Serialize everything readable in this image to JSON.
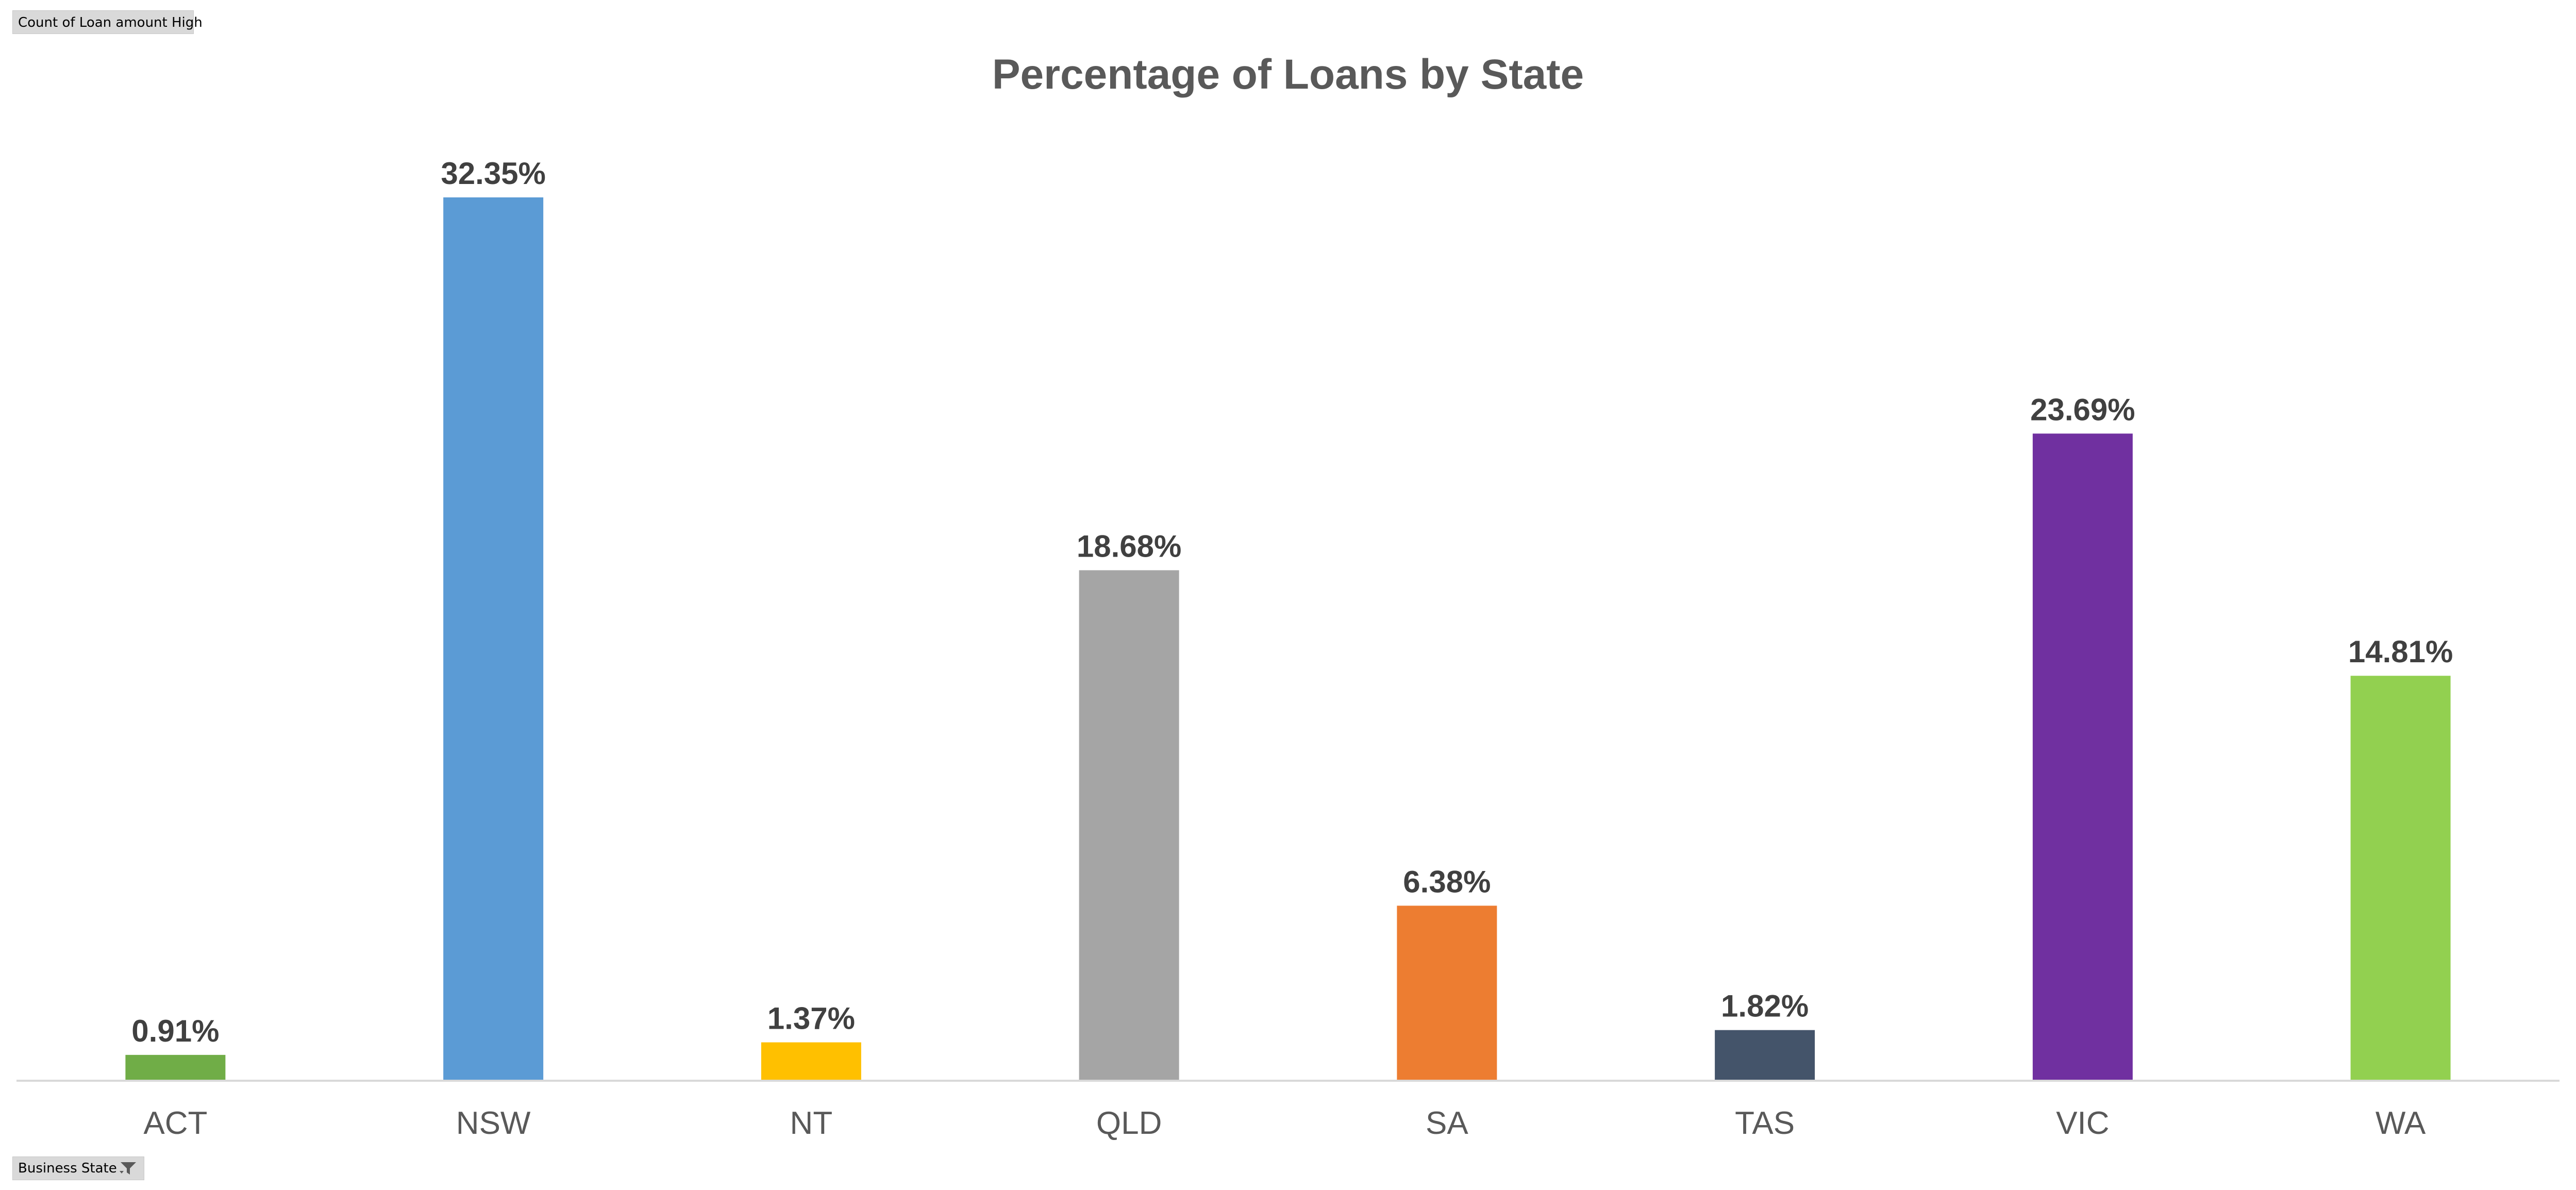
{
  "field_buttons": {
    "value_field": "Count of Loan amount High",
    "axis_field": "Business State",
    "axis_filter_icon": "filter-icon"
  },
  "chart_data": {
    "type": "bar",
    "title": "Percentage of Loans by State",
    "xlabel": "",
    "ylabel": "",
    "ylim": [
      0,
      35
    ],
    "grid": false,
    "legend": "none",
    "categories": [
      "ACT",
      "NSW",
      "NT",
      "QLD",
      "SA",
      "TAS",
      "VIC",
      "WA"
    ],
    "values": [
      0.91,
      32.35,
      1.37,
      18.68,
      6.38,
      1.82,
      23.69,
      14.81
    ],
    "data_labels": [
      "0.91%",
      "32.35%",
      "1.37%",
      "18.68%",
      "6.38%",
      "1.82%",
      "23.69%",
      "14.81%"
    ],
    "colors": [
      "#70ad47",
      "#5b9bd5",
      "#ffc000",
      "#a5a5a5",
      "#ed7d31",
      "#44546a",
      "#7030a0",
      "#92d050"
    ]
  }
}
